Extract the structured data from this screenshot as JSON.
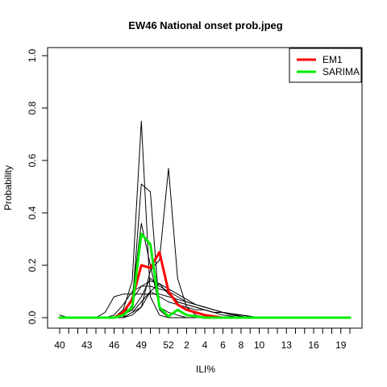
{
  "chart_data": {
    "type": "line",
    "title": "EW46 National onset prob.jpeg",
    "xlabel": "ILI%",
    "ylabel": "Probability",
    "ylim": [
      0,
      1
    ],
    "y_ticks": [
      0.0,
      0.2,
      0.4,
      0.6,
      0.8,
      1.0
    ],
    "y_tick_labels": [
      "0.0",
      "0.2",
      "0.4",
      "0.6",
      "0.8",
      "1.0"
    ],
    "x_tick_weeks": [
      40,
      43,
      46,
      49,
      52,
      2,
      4,
      6,
      8,
      10,
      13,
      16,
      19
    ],
    "x_weeks_sequence": [
      40,
      41,
      42,
      43,
      44,
      45,
      46,
      47,
      48,
      49,
      50,
      51,
      52,
      1,
      2,
      3,
      4,
      5,
      6,
      7,
      8,
      9,
      10,
      11,
      12,
      13,
      14,
      15,
      16,
      17,
      18,
      19,
      20
    ],
    "legend": {
      "placement": "top-right",
      "entries": [
        {
          "name": "EM1",
          "color": "#ff0000"
        },
        {
          "name": "SARIMA",
          "color": "#00ee00"
        }
      ]
    },
    "series": [
      {
        "name": "EM1",
        "color": "#ff0000",
        "width": 3,
        "values": [
          0,
          0,
          0,
          0,
          0,
          0,
          0,
          0.02,
          0.07,
          0.2,
          0.19,
          0.25,
          0.1,
          0.05,
          0.03,
          0.02,
          0.01,
          0.005,
          0,
          0,
          0,
          0,
          0,
          0,
          0,
          0,
          0,
          0,
          0,
          0,
          0,
          0,
          0
        ]
      },
      {
        "name": "SARIMA",
        "color": "#00ee00",
        "width": 3,
        "values": [
          0,
          0,
          0,
          0,
          0,
          0,
          0,
          0.01,
          0.04,
          0.32,
          0.28,
          0.04,
          0.005,
          0.03,
          0.01,
          0.005,
          0,
          0,
          0,
          0,
          0,
          0,
          0,
          0,
          0,
          0,
          0,
          0,
          0,
          0,
          0,
          0,
          0
        ]
      },
      {
        "color": "#000000",
        "width": 1,
        "values": [
          0.01,
          0,
          0,
          0,
          0,
          0,
          0,
          0.03,
          0.14,
          0.75,
          0.08,
          0.01,
          0,
          0,
          0,
          0,
          0,
          0,
          0,
          0,
          0,
          0,
          0,
          0,
          0,
          0,
          0,
          0,
          0,
          0,
          0,
          0,
          0
        ]
      },
      {
        "color": "#000000",
        "width": 1,
        "values": [
          0,
          0,
          0,
          0,
          0,
          0,
          0,
          0,
          0.05,
          0.51,
          0.48,
          0.03,
          0,
          0,
          0,
          0,
          0,
          0,
          0,
          0,
          0,
          0,
          0,
          0,
          0,
          0,
          0,
          0,
          0,
          0,
          0,
          0,
          0
        ]
      },
      {
        "color": "#000000",
        "width": 1,
        "values": [
          0,
          0,
          0,
          0,
          0,
          0,
          0,
          0,
          0.02,
          0.04,
          0.18,
          0.22,
          0.57,
          0.15,
          0.04,
          0.01,
          0,
          0,
          0,
          0,
          0,
          0,
          0,
          0,
          0,
          0,
          0,
          0,
          0,
          0,
          0,
          0,
          0
        ]
      },
      {
        "color": "#000000",
        "width": 1,
        "values": [
          0,
          0,
          0,
          0,
          0,
          0,
          0,
          0,
          0.08,
          0.36,
          0.2,
          0.04,
          0.02,
          0.01,
          0,
          0,
          0,
          0,
          0,
          0,
          0,
          0,
          0,
          0,
          0,
          0,
          0,
          0,
          0,
          0,
          0,
          0,
          0
        ]
      },
      {
        "color": "#000000",
        "width": 1,
        "values": [
          0,
          0,
          0,
          0,
          0,
          0.02,
          0.08,
          0.09,
          0.09,
          0.09,
          0.09,
          0.09,
          0.08,
          0.07,
          0.06,
          0.05,
          0.04,
          0.03,
          0.02,
          0.01,
          0.005,
          0,
          0,
          0,
          0,
          0,
          0,
          0,
          0,
          0,
          0,
          0,
          0
        ]
      },
      {
        "color": "#000000",
        "width": 1,
        "values": [
          0,
          0,
          0,
          0,
          0,
          0,
          0.01,
          0.05,
          0.1,
          0.12,
          0.12,
          0.11,
          0.1,
          0.08,
          0.06,
          0.05,
          0.04,
          0.03,
          0.02,
          0.015,
          0.01,
          0.005,
          0,
          0,
          0,
          0,
          0,
          0,
          0,
          0,
          0,
          0,
          0
        ]
      },
      {
        "color": "#000000",
        "width": 1,
        "values": [
          0,
          0,
          0,
          0,
          0,
          0,
          0,
          0.02,
          0.07,
          0.12,
          0.14,
          0.13,
          0.11,
          0.09,
          0.07,
          0.05,
          0.04,
          0.03,
          0.02,
          0.01,
          0.005,
          0,
          0,
          0,
          0,
          0,
          0,
          0,
          0,
          0,
          0,
          0,
          0
        ]
      },
      {
        "color": "#000000",
        "width": 1,
        "values": [
          0,
          0,
          0,
          0,
          0,
          0,
          0,
          0.01,
          0.03,
          0.08,
          0.15,
          0.12,
          0.1,
          0.06,
          0.05,
          0.04,
          0.03,
          0.02,
          0.01,
          0.005,
          0,
          0,
          0,
          0,
          0,
          0,
          0,
          0,
          0,
          0,
          0,
          0,
          0
        ]
      },
      {
        "color": "#000000",
        "width": 1,
        "values": [
          0,
          0,
          0,
          0,
          0,
          0,
          0,
          0,
          0.02,
          0.06,
          0.1,
          0.08,
          0.06,
          0.05,
          0.04,
          0.03,
          0.03,
          0.02,
          0.02,
          0.01,
          0.01,
          0.005,
          0,
          0,
          0,
          0,
          0,
          0,
          0,
          0,
          0,
          0,
          0
        ]
      },
      {
        "color": "#000000",
        "width": 1,
        "values": [
          0,
          0,
          0,
          0,
          0,
          0,
          0,
          0,
          0.01,
          0.04,
          0.1,
          0.13,
          0.09,
          0.06,
          0.05,
          0.04,
          0.03,
          0.02,
          0.02,
          0.015,
          0.01,
          0.005,
          0,
          0,
          0,
          0,
          0,
          0,
          0,
          0,
          0,
          0,
          0
        ]
      }
    ]
  }
}
